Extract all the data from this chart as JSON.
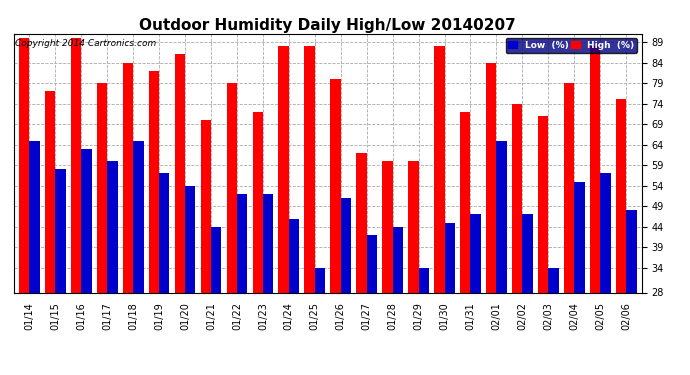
{
  "title": "Outdoor Humidity Daily High/Low 20140207",
  "copyright": "Copyright 2014 Cartronics.com",
  "dates": [
    "01/14",
    "01/15",
    "01/16",
    "01/17",
    "01/18",
    "01/19",
    "01/20",
    "01/21",
    "01/22",
    "01/23",
    "01/24",
    "01/25",
    "01/26",
    "01/27",
    "01/28",
    "01/29",
    "01/30",
    "01/31",
    "02/01",
    "02/02",
    "02/03",
    "02/04",
    "02/05",
    "02/06"
  ],
  "high": [
    90,
    77,
    90,
    79,
    84,
    82,
    86,
    70,
    79,
    72,
    88,
    88,
    80,
    62,
    60,
    60,
    88,
    72,
    84,
    74,
    71,
    79,
    88,
    75
  ],
  "low": [
    65,
    58,
    63,
    60,
    65,
    57,
    54,
    44,
    52,
    52,
    46,
    34,
    51,
    42,
    44,
    34,
    45,
    47,
    65,
    47,
    34,
    55,
    57,
    48
  ],
  "ylim_min": 28,
  "ylim_max": 91,
  "yticks": [
    28,
    34,
    39,
    44,
    49,
    54,
    59,
    64,
    69,
    74,
    79,
    84,
    89
  ],
  "bar_width": 0.4,
  "high_color": "#ff0000",
  "low_color": "#0000cc",
  "bg_color": "#ffffff",
  "grid_color": "#aaaaaa",
  "title_fontsize": 11,
  "tick_fontsize": 7,
  "legend_low_label": "Low  (%)",
  "legend_high_label": "High  (%)"
}
